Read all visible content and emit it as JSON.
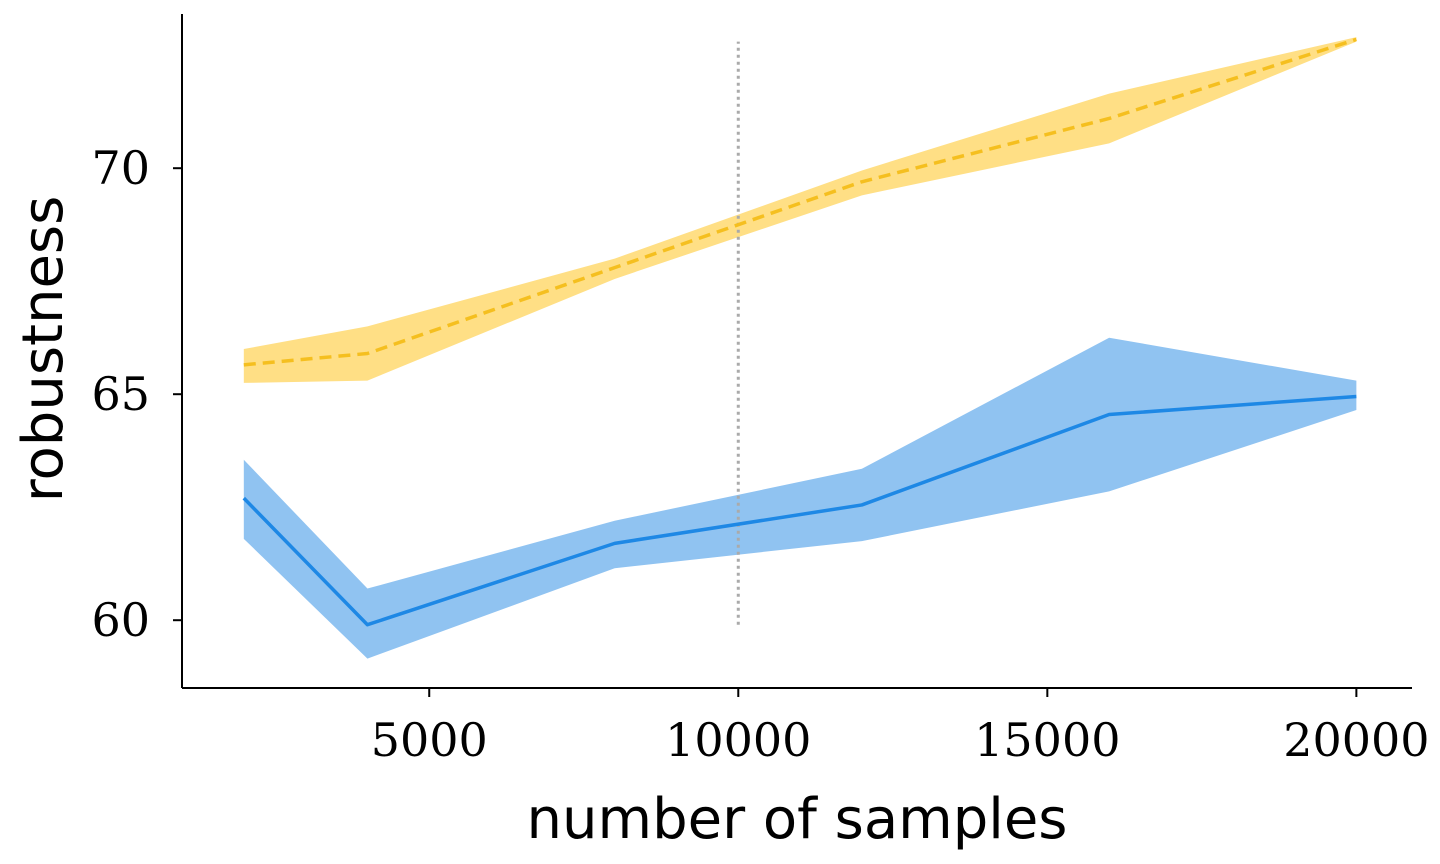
{
  "chart_data": {
    "type": "line",
    "xlabel": "number of samples",
    "ylabel": "robustness",
    "xlim": [
      1000,
      20900
    ],
    "ylim": [
      58.5,
      73.5
    ],
    "xticks": [
      5000,
      10000,
      15000,
      20000
    ],
    "yticks": [
      60,
      65,
      70
    ],
    "grid": false,
    "reference_line": {
      "x": 10000,
      "y_range": [
        59.9,
        72.8
      ],
      "color": "#aaaaaa",
      "style": "dotted"
    },
    "series": [
      {
        "color": "#f5bf1f",
        "fill_color": "#ffdf85",
        "line_style": "dashed",
        "x": [
          2000,
          4000,
          8000,
          12000,
          16000,
          20000
        ],
        "y": [
          65.65,
          65.9,
          67.8,
          69.7,
          71.1,
          72.85
        ],
        "y_lower": [
          65.25,
          65.3,
          67.55,
          69.4,
          70.55,
          72.8
        ],
        "y_upper": [
          66.0,
          66.5,
          68.0,
          69.95,
          71.65,
          72.9
        ]
      },
      {
        "color": "#1e88e5",
        "fill_color": "#90c3f1",
        "line_style": "solid",
        "x": [
          2000,
          4000,
          8000,
          12000,
          16000,
          20000
        ],
        "y": [
          62.7,
          59.9,
          61.7,
          62.55,
          64.55,
          64.95
        ],
        "y_lower": [
          61.8,
          59.15,
          61.15,
          61.75,
          62.85,
          64.65
        ],
        "y_upper": [
          63.55,
          60.7,
          62.2,
          63.35,
          66.25,
          65.3
        ]
      }
    ]
  }
}
